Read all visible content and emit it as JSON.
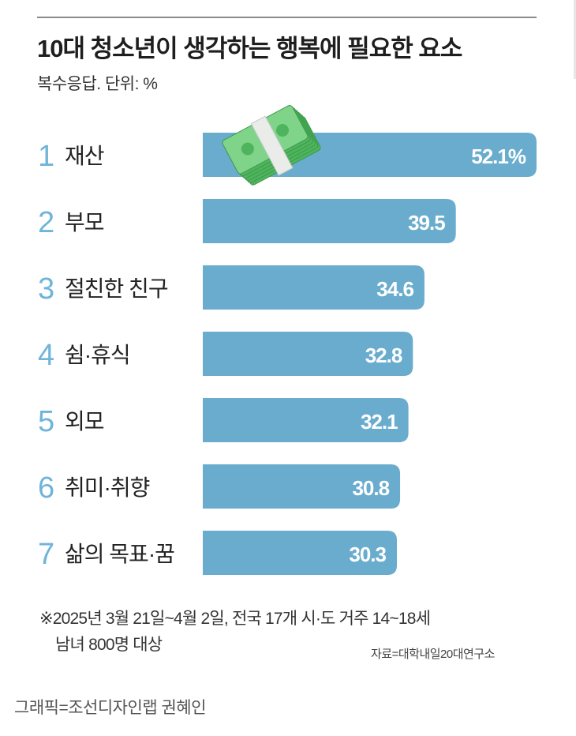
{
  "header": {
    "title": "10대 청소년이 생각하는 행복에 필요한 요소",
    "subtitle": "복수응답. 단위: %"
  },
  "chart_data": {
    "type": "bar",
    "orientation": "horizontal",
    "title": "10대 청소년이 생각하는 행복에 필요한 요소",
    "subtitle": "복수응답. 단위: %",
    "ranks": [
      "1",
      "2",
      "3",
      "4",
      "5",
      "6",
      "7"
    ],
    "categories": [
      "재산",
      "부모",
      "절친한 친구",
      "쉼·휴식",
      "외모",
      "취미·취향",
      "삶의 목표·꿈"
    ],
    "values": [
      52.1,
      39.5,
      34.6,
      32.8,
      32.1,
      30.8,
      30.3
    ],
    "value_labels": [
      "52.1%",
      "39.5",
      "34.6",
      "32.8",
      "32.1",
      "30.8",
      "30.3"
    ],
    "xlim": [
      0,
      52.1
    ],
    "grid": false,
    "bar_color": "#6aaccd",
    "rank_color": "#6fb4da",
    "decoration_icon": "money-stack-icon"
  },
  "footer": {
    "note_line1": "※2025년 3월 21일~4월 2일, 전국 17개 시·도 거주 14~18세",
    "note_line2": "남녀 800명 대상",
    "source": "자료=대학내일20대연구소",
    "credit": "그래픽=조선디자인랩 권혜인"
  }
}
